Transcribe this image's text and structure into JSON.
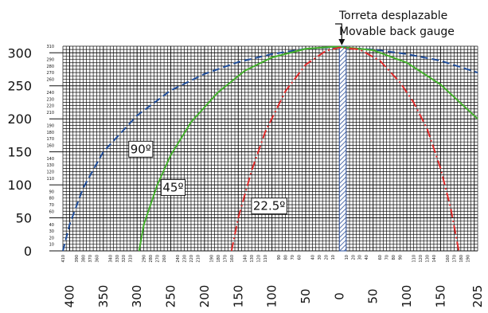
{
  "chart_data": {
    "type": "line",
    "title": "",
    "xlabel": "",
    "ylabel": "",
    "xlim": [
      -410,
      205
    ],
    "ylim": [
      0,
      310
    ],
    "annotation": {
      "line1": "Torreta desplazable",
      "line2": "Movable back gauge"
    },
    "y_major_ticks": [
      0,
      50,
      100,
      150,
      200,
      250,
      300
    ],
    "y_minor_ticks": [
      10,
      20,
      30,
      40,
      60,
      70,
      80,
      90,
      110,
      120,
      130,
      140,
      160,
      170,
      180,
      190,
      210,
      220,
      230,
      240,
      260,
      270,
      280,
      290,
      310
    ],
    "x_major_ticks": [
      {
        "x": -400,
        "label": "400"
      },
      {
        "x": -350,
        "label": "350"
      },
      {
        "x": -300,
        "label": "300"
      },
      {
        "x": -250,
        "label": "250"
      },
      {
        "x": -200,
        "label": "200"
      },
      {
        "x": -150,
        "label": "150"
      },
      {
        "x": -100,
        "label": "100"
      },
      {
        "x": -50,
        "label": "50"
      },
      {
        "x": 0,
        "label": "0"
      },
      {
        "x": 50,
        "label": "50"
      },
      {
        "x": 100,
        "label": "100"
      },
      {
        "x": 150,
        "label": "150"
      },
      {
        "x": 205,
        "label": "205"
      }
    ],
    "x_minor_ticks_left": [
      410,
      390,
      380,
      370,
      360,
      340,
      330,
      320,
      310,
      290,
      280,
      270,
      260,
      240,
      230,
      220,
      210,
      190,
      180,
      170,
      160,
      140,
      130,
      120,
      110,
      90,
      80,
      70,
      60,
      40,
      30,
      20,
      10
    ],
    "x_minor_ticks_right": [
      10,
      20,
      30,
      40,
      60,
      70,
      80,
      90,
      110,
      120,
      130,
      140,
      160,
      170,
      180,
      190
    ],
    "strip_x": [
      0,
      10
    ],
    "series": [
      {
        "name": "90º",
        "color": "#1f4e9c",
        "dash": "dashed",
        "label_at": [
          -310,
          148
        ],
        "points": [
          [
            -410,
            0
          ],
          [
            -400,
            40
          ],
          [
            -380,
            95
          ],
          [
            -350,
            150
          ],
          [
            -300,
            205
          ],
          [
            -250,
            243
          ],
          [
            -200,
            268
          ],
          [
            -150,
            286
          ],
          [
            -100,
            298
          ],
          [
            -50,
            306
          ],
          [
            -20,
            308
          ],
          [
            0,
            308
          ],
          [
            50,
            305
          ],
          [
            100,
            298
          ],
          [
            150,
            288
          ],
          [
            205,
            270
          ]
        ]
      },
      {
        "name": "45º",
        "color": "#44b02c",
        "dash": "solid",
        "label_at": [
          -262,
          90
        ],
        "points": [
          [
            -297,
            0
          ],
          [
            -290,
            40
          ],
          [
            -270,
            100
          ],
          [
            -250,
            145
          ],
          [
            -220,
            195
          ],
          [
            -180,
            240
          ],
          [
            -140,
            273
          ],
          [
            -100,
            293
          ],
          [
            -50,
            306
          ],
          [
            -10,
            309
          ],
          [
            0,
            309
          ],
          [
            50,
            304
          ],
          [
            100,
            285
          ],
          [
            150,
            252
          ],
          [
            205,
            200
          ]
        ]
      },
      {
        "name": "22.5º",
        "color": "#e02b2b",
        "dash": "dashdot",
        "label_at": [
          -128,
          62
        ],
        "points": [
          [
            -160,
            0
          ],
          [
            -150,
            50
          ],
          [
            -130,
            122
          ],
          [
            -110,
            180
          ],
          [
            -80,
            242
          ],
          [
            -50,
            282
          ],
          [
            -20,
            303
          ],
          [
            0,
            308
          ],
          [
            30,
            305
          ],
          [
            60,
            288
          ],
          [
            90,
            255
          ],
          [
            110,
            225
          ],
          [
            130,
            185
          ],
          [
            150,
            125
          ],
          [
            165,
            65
          ],
          [
            177,
            0
          ]
        ]
      }
    ]
  }
}
